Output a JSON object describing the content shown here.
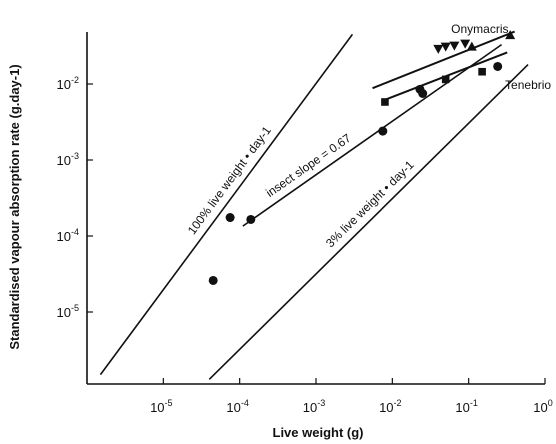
{
  "chart_data": {
    "type": "scatter",
    "xlabel": "Live weight (g)",
    "ylabel": "Standardised vapour absorption rate (g.day-1)",
    "x_scale": "log",
    "y_scale": "log",
    "xlim": [
      1e-06,
      1
    ],
    "ylim": [
      2e-06,
      0.05
    ],
    "x_ticks": [
      {
        "value": 1e-05,
        "base": "10",
        "exp": "-5"
      },
      {
        "value": 0.0001,
        "base": "10",
        "exp": "-4"
      },
      {
        "value": 0.001,
        "base": "10",
        "exp": "-3"
      },
      {
        "value": 0.01,
        "base": "10",
        "exp": "-2"
      },
      {
        "value": 0.1,
        "base": "10",
        "exp": "-1"
      },
      {
        "value": 1,
        "base": "10",
        "exp": "0"
      }
    ],
    "y_ticks": [
      {
        "value": 1e-05,
        "base": "10",
        "exp": "-5"
      },
      {
        "value": 0.0001,
        "base": "10",
        "exp": "-4"
      },
      {
        "value": 0.001,
        "base": "10",
        "exp": "-3"
      },
      {
        "value": 0.01,
        "base": "10",
        "exp": "-2"
      }
    ],
    "grid": false,
    "reference_lines": [
      {
        "label": "100% live weight • day-1",
        "points": [
          [
            1.5e-06,
            1.5e-06
          ],
          [
            0.003,
            0.045
          ]
        ]
      },
      {
        "label": "3% live weight • day-1",
        "points": [
          [
            4e-05,
            1.3e-06
          ],
          [
            0.6,
            0.018
          ]
        ]
      },
      {
        "label": "insect slope = 0.67",
        "points": [
          [
            0.00011,
            0.000135
          ],
          [
            0.27,
            0.033
          ]
        ]
      }
    ],
    "series": [
      {
        "name": "Onymacris",
        "marker": "triangle",
        "points": [
          [
            0.04,
            0.029
          ],
          [
            0.05,
            0.031
          ],
          [
            0.065,
            0.032
          ],
          [
            0.09,
            0.034
          ]
        ]
      },
      {
        "name": "Tenebrio",
        "marker": "square",
        "points": [
          [
            0.008,
            0.0058
          ],
          [
            0.05,
            0.0115
          ],
          [
            0.15,
            0.0145
          ]
        ]
      },
      {
        "name": "",
        "marker": "circle",
        "points": [
          [
            4.5e-05,
            2.6e-05
          ],
          [
            7.5e-05,
            0.000175
          ],
          [
            0.00014,
            0.000165
          ],
          [
            0.0075,
            0.0024
          ],
          [
            0.023,
            0.0085
          ],
          [
            0.025,
            0.0075
          ],
          [
            0.24,
            0.017
          ]
        ]
      }
    ],
    "series_lines": [
      {
        "name": "Onymacris",
        "points": [
          [
            0.0055,
            0.0088
          ],
          [
            0.4,
            0.049
          ]
        ]
      },
      {
        "name": "Tenebrio",
        "points": [
          [
            0.008,
            0.0062
          ],
          [
            0.32,
            0.026
          ]
        ]
      }
    ],
    "filled_triangles": [
      [
        0.11,
        0.031
      ],
      [
        0.35,
        0.044
      ]
    ],
    "annotations": [
      {
        "text": "Onymacris",
        "x": 0.14,
        "y": 0.047
      },
      {
        "text": "Tenebrio",
        "x": 0.6,
        "y": 0.0086
      }
    ]
  }
}
